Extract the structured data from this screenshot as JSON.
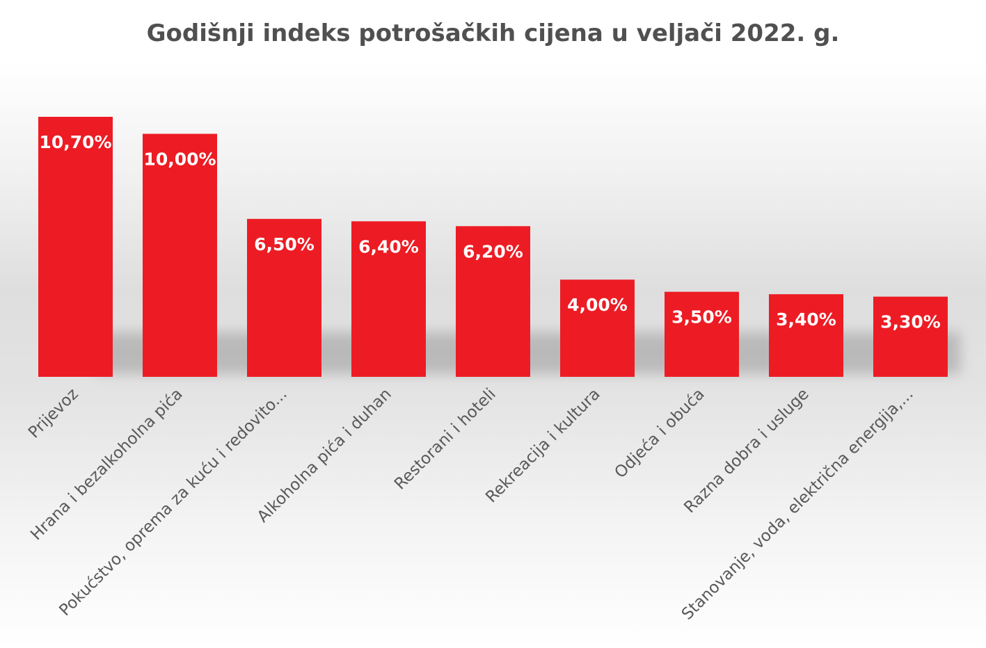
{
  "chart_data": {
    "type": "bar",
    "title": "Godišnji indeks potrošačkih cijena u veljači 2022. g.",
    "xlabel": "",
    "ylabel": "",
    "ylim": [
      0,
      10.7
    ],
    "grid": false,
    "legend": "none",
    "bar_color": "#ed1c24",
    "value_label_color": "#ffffff",
    "categories": [
      "Prijevoz",
      "Hrana i bezalkoholna pića",
      "Pokućstvo, oprema za kuću i redovito...",
      "Alkoholna pića i duhan",
      "Restorani i hoteli",
      "Rekreacija i kultura",
      "Odjeća i obuća",
      "Razna dobra i usluge",
      "Stanovanje, voda, električna energija,..."
    ],
    "values": [
      10.7,
      10.0,
      6.5,
      6.4,
      6.2,
      4.0,
      3.5,
      3.4,
      3.3
    ],
    "value_labels": [
      "10,70%",
      "10,00%",
      "6,50%",
      "6,40%",
      "6,20%",
      "4,00%",
      "3,50%",
      "3,40%",
      "3,30%"
    ]
  }
}
